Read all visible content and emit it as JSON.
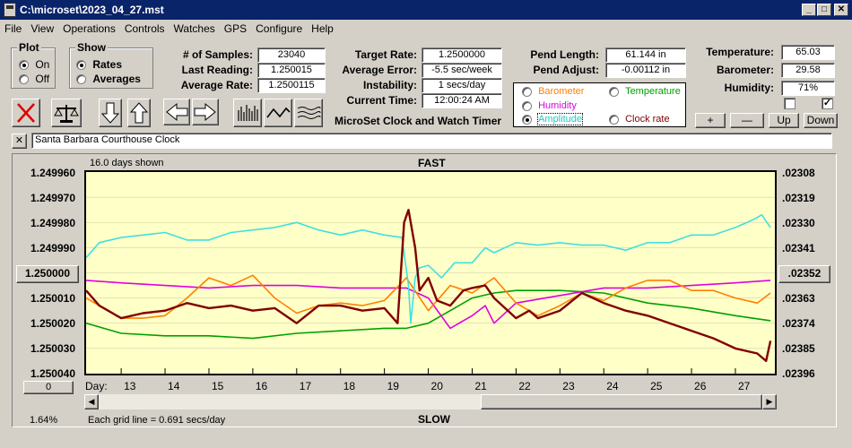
{
  "window": {
    "title": "C:\\microset\\2023_04_27.mst",
    "min": "_",
    "max": "□",
    "close": "✕"
  },
  "menu": [
    "File",
    "View",
    "Operations",
    "Controls",
    "Watches",
    "GPS",
    "Configure",
    "Help"
  ],
  "plot_group": {
    "title": "Plot",
    "on": "On",
    "off": "Off"
  },
  "show_group": {
    "title": "Show",
    "rates": "Rates",
    "averages": "Averages"
  },
  "stats": {
    "samples_label": "# of Samples:",
    "samples": "23040",
    "last_label": "Last Reading:",
    "last": "1.250015",
    "avg_label": "Average Rate:",
    "avg": "1.2500115",
    "target_label": "Target Rate:",
    "target": "1.2500000",
    "averr_label": "Average Error:",
    "averr": "-5.5 sec/week",
    "instab_label": "Instability:",
    "instab": "1 secs/day",
    "time_label": "Current Time:",
    "time": "12:00:24 AM",
    "pend_len_label": "Pend Length:",
    "pend_len": "61.144 in",
    "pend_adj_label": "Pend Adjust:",
    "pend_adj": "-0.00112 in",
    "temp_label": "Temperature:",
    "temp": "65.03",
    "baro_label": "Barometer:",
    "baro": "29.58",
    "hum_label": "Humidity:",
    "hum": "71%"
  },
  "app_title": "MicroSet Clock and Watch Timer",
  "legend": {
    "barometer": "Barometer",
    "temperature": "Temperature",
    "humidity": "Humidity",
    "amplitude": "Amplitude",
    "clock_rate": "Clock rate"
  },
  "colors": {
    "barometer": "#ff8000",
    "temperature": "#00a000",
    "humidity": "#e000e0",
    "amplitude": "#40e0e0",
    "clock_rate": "#800000"
  },
  "small_buttons": {
    "plus": "+",
    "minus": "—",
    "up": "Up",
    "down": "Down"
  },
  "checkboxes": {
    "left": "",
    "right": "✓"
  },
  "clock_name": "Santa Barbara Courthouse Clock",
  "clear_btn": "✕",
  "chart": {
    "days_shown": "16.0 days shown",
    "fast": "FAST",
    "slow": "SLOW",
    "y_left": [
      "1.249960",
      "1.249970",
      "1.249980",
      "1.249990",
      "1.250000",
      "1.250010",
      "1.250020",
      "1.250030",
      "1.250040"
    ],
    "y_right": [
      ".02308",
      ".02319",
      ".02330",
      ".02341",
      ".02352",
      ".02363",
      ".02374",
      ".02385",
      ".02396"
    ],
    "day_label": "Day:",
    "days": [
      "13",
      "14",
      "15",
      "16",
      "17",
      "18",
      "19",
      "20",
      "21",
      "22",
      "23",
      "24",
      "25",
      "26",
      "27"
    ],
    "zero_btn": "0",
    "pct": "1.64%",
    "grid_note": "Each grid line = 0.691 secs/day"
  },
  "chart_data": {
    "type": "line",
    "title": "FAST",
    "xlabel": "Day",
    "x_range": [
      12.2,
      27.9
    ],
    "ylim": [
      1.24996,
      1.25004
    ],
    "y_inverted": true,
    "grid": true,
    "series": [
      {
        "name": "Amplitude",
        "x": [
          12.2,
          12.5,
          13,
          13.5,
          14,
          14.5,
          15,
          15.5,
          16,
          16.5,
          17,
          17.5,
          18,
          18.5,
          19,
          19.4,
          19.55,
          19.6,
          19.7,
          19.8,
          20,
          20.3,
          20.6,
          21,
          21.3,
          21.5,
          22,
          22.5,
          23,
          23.5,
          24,
          24.5,
          25,
          25.5,
          26,
          26.5,
          27,
          27.4,
          27.6,
          27.8
        ],
        "y": [
          1.249994,
          1.249988,
          1.249986,
          1.249985,
          1.249984,
          1.249987,
          1.249987,
          1.249984,
          1.249983,
          1.249982,
          1.24998,
          1.249983,
          1.249985,
          1.249983,
          1.249985,
          1.249986,
          1.250005,
          1.25002,
          1.250002,
          1.249998,
          1.249997,
          1.250002,
          1.249996,
          1.249996,
          1.24999,
          1.249992,
          1.249988,
          1.249989,
          1.249988,
          1.249989,
          1.249989,
          1.249991,
          1.249988,
          1.249988,
          1.249985,
          1.249985,
          1.249982,
          1.249979,
          1.249977,
          1.249982
        ]
      },
      {
        "name": "Barometer",
        "x": [
          12.2,
          12.5,
          13,
          13.5,
          14,
          14.5,
          15,
          15.5,
          16,
          16.5,
          17,
          17.5,
          18,
          18.5,
          19,
          19.5,
          20,
          20.5,
          21,
          21.5,
          22,
          22.5,
          23,
          23.5,
          24,
          24.5,
          25,
          25.5,
          26,
          26.5,
          27,
          27.5,
          27.8
        ],
        "y": [
          1.25001,
          1.250013,
          1.250018,
          1.250018,
          1.250017,
          1.25001,
          1.250002,
          1.250005,
          1.250001,
          1.25001,
          1.250016,
          1.250013,
          1.250012,
          1.250013,
          1.250011,
          1.250002,
          1.250015,
          1.250005,
          1.250008,
          1.250002,
          1.250012,
          1.250017,
          1.250013,
          1.250008,
          1.250011,
          1.250006,
          1.250003,
          1.250003,
          1.250007,
          1.250007,
          1.25001,
          1.250012,
          1.250008
        ]
      },
      {
        "name": "Temperature",
        "x": [
          12.2,
          13,
          14,
          15,
          16,
          17,
          18,
          19,
          19.5,
          20,
          20.5,
          21,
          21.5,
          22,
          23,
          24,
          25,
          26,
          27,
          27.8
        ],
        "y": [
          1.25002,
          1.250024,
          1.250025,
          1.250025,
          1.250026,
          1.250024,
          1.250023,
          1.250022,
          1.250022,
          1.25002,
          1.250015,
          1.25001,
          1.250008,
          1.250007,
          1.250007,
          1.250008,
          1.250012,
          1.250014,
          1.250017,
          1.250019
        ]
      },
      {
        "name": "Humidity",
        "x": [
          12.2,
          13,
          14,
          15,
          16,
          17,
          18,
          19,
          19.5,
          20,
          20.5,
          21,
          21.3,
          21.5,
          22,
          23,
          24,
          25,
          26,
          27,
          27.8
        ],
        "y": [
          1.250003,
          1.250004,
          1.250005,
          1.250006,
          1.250005,
          1.250005,
          1.250006,
          1.250006,
          1.250006,
          1.25001,
          1.250022,
          1.250017,
          1.250013,
          1.25002,
          1.250012,
          1.250009,
          1.250006,
          1.250006,
          1.250005,
          1.250004,
          1.250003
        ]
      },
      {
        "name": "Clock rate",
        "x": [
          12.2,
          12.5,
          13,
          13.5,
          14,
          14.5,
          15,
          15.5,
          16,
          16.5,
          17,
          17.5,
          18,
          18.5,
          19,
          19.3,
          19.45,
          19.55,
          19.7,
          19.8,
          20,
          20.2,
          20.5,
          20.8,
          21,
          21.3,
          21.5,
          22,
          22.3,
          22.5,
          23,
          23.5,
          24,
          24.5,
          25,
          25.5,
          26,
          26.5,
          27,
          27.5,
          27.7,
          27.8
        ],
        "y": [
          1.250007,
          1.250013,
          1.250018,
          1.250016,
          1.250015,
          1.250012,
          1.250014,
          1.250013,
          1.250015,
          1.250014,
          1.25002,
          1.250013,
          1.250013,
          1.250015,
          1.250014,
          1.25002,
          1.24998,
          1.249975,
          1.24999,
          1.250007,
          1.250002,
          1.250011,
          1.250013,
          1.250007,
          1.250006,
          1.250005,
          1.25001,
          1.250018,
          1.250015,
          1.250018,
          1.250015,
          1.250008,
          1.250012,
          1.250015,
          1.250017,
          1.25002,
          1.250023,
          1.250026,
          1.25003,
          1.250032,
          1.250035,
          1.250027
        ]
      }
    ]
  }
}
